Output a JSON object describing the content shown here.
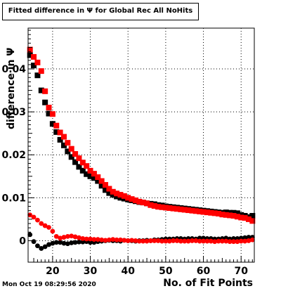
{
  "chart_data": {
    "type": "scatter",
    "title": "Fitted difference in  Ψ  for Global Rec All NoHits",
    "xlabel": "No. of Fit Points",
    "ylabel": "difference in  Ψ",
    "xlim": [
      13.5,
      73.5
    ],
    "ylim": [
      -0.005,
      0.0495
    ],
    "xticks": [
      20,
      30,
      40,
      50,
      60,
      70
    ],
    "yticks": [
      0,
      0.01,
      0.02,
      0.03,
      0.04
    ],
    "ytick_labels": [
      "0",
      "0.01",
      "0.02",
      "0.03",
      "0.04"
    ],
    "grid": true,
    "legend": "none",
    "series": [
      {
        "marker": "square",
        "color": "#000000",
        "x": [
          14,
          15,
          16,
          17,
          18,
          19,
          20,
          21,
          22,
          23,
          24,
          25,
          26,
          27,
          28,
          29,
          30,
          31,
          32,
          33,
          34,
          35,
          36,
          37,
          38,
          39,
          40,
          41,
          42,
          43,
          44,
          45,
          46,
          47,
          48,
          49,
          50,
          51,
          52,
          53,
          54,
          55,
          56,
          57,
          58,
          59,
          60,
          61,
          62,
          63,
          64,
          65,
          66,
          67,
          68,
          69,
          70,
          71,
          72,
          73
        ],
        "y": [
          0.0432,
          0.0408,
          0.0385,
          0.035,
          0.0322,
          0.0296,
          0.0272,
          0.0253,
          0.0235,
          0.0222,
          0.0208,
          0.0195,
          0.0183,
          0.0172,
          0.0163,
          0.0155,
          0.015,
          0.0146,
          0.0139,
          0.0128,
          0.0118,
          0.0111,
          0.0107,
          0.0103,
          0.01,
          0.0098,
          0.0096,
          0.0094,
          0.0092,
          0.009,
          0.0089,
          0.0087,
          0.0086,
          0.0085,
          0.0083,
          0.0082,
          0.008,
          0.0079,
          0.0078,
          0.0077,
          0.0076,
          0.0075,
          0.0074,
          0.0073,
          0.0072,
          0.0071,
          0.007,
          0.0069,
          0.0068,
          0.0067,
          0.0066,
          0.0065,
          0.0066,
          0.0065,
          0.0065,
          0.0064,
          0.006,
          0.0058,
          0.0055,
          0.0058
        ]
      },
      {
        "marker": "square",
        "color": "#ff0000",
        "x": [
          14,
          15,
          16,
          17,
          18,
          19,
          20,
          21,
          22,
          23,
          24,
          25,
          26,
          27,
          28,
          29,
          30,
          31,
          32,
          33,
          34,
          35,
          36,
          37,
          38,
          39,
          40,
          41,
          42,
          43,
          44,
          45,
          46,
          47,
          48,
          49,
          50,
          51,
          52,
          53,
          54,
          55,
          56,
          57,
          58,
          59,
          60,
          61,
          62,
          63,
          64,
          65,
          66,
          67,
          68,
          69,
          70,
          71,
          72,
          73
        ],
        "y": [
          0.0445,
          0.0428,
          0.0415,
          0.0395,
          0.0348,
          0.031,
          0.0295,
          0.0268,
          0.0252,
          0.0242,
          0.0228,
          0.0214,
          0.0202,
          0.0192,
          0.0182,
          0.0174,
          0.0163,
          0.0156,
          0.0148,
          0.0139,
          0.013,
          0.0121,
          0.0114,
          0.011,
          0.0107,
          0.0104,
          0.01,
          0.0097,
          0.0094,
          0.0091,
          0.0089,
          0.0087,
          0.0083,
          0.0081,
          0.0079,
          0.0078,
          0.0077,
          0.0076,
          0.0075,
          0.0074,
          0.0073,
          0.0072,
          0.0071,
          0.007,
          0.0069,
          0.0068,
          0.0067,
          0.0066,
          0.0065,
          0.0064,
          0.0063,
          0.0061,
          0.006,
          0.0059,
          0.0058,
          0.0056,
          0.0054,
          0.0053,
          0.005,
          0.0046
        ]
      },
      {
        "marker": "circle",
        "color": "#000000",
        "x": [
          14,
          15,
          16,
          17,
          18,
          19,
          20,
          21,
          22,
          23,
          24,
          25,
          26,
          27,
          28,
          29,
          30,
          31,
          32,
          33,
          34,
          35,
          36,
          37,
          38,
          39,
          40,
          41,
          42,
          43,
          44,
          45,
          46,
          47,
          48,
          49,
          50,
          51,
          52,
          53,
          54,
          55,
          56,
          57,
          58,
          59,
          60,
          61,
          62,
          63,
          64,
          65,
          66,
          67,
          68,
          69,
          70,
          71,
          72,
          73
        ],
        "y": [
          0.0014,
          -0.0002,
          -0.0012,
          -0.0018,
          -0.0014,
          -0.0009,
          -0.0006,
          -0.0004,
          -0.0004,
          -0.0006,
          -0.0007,
          -0.0005,
          -0.0004,
          -0.0003,
          -0.0003,
          -0.0002,
          -0.0004,
          -0.0004,
          -0.0002,
          -0.0001,
          0.0,
          0.0001,
          0.0,
          0.0,
          -0.0001,
          0.0001,
          0.0,
          0.0,
          -0.0001,
          0.0,
          0.0,
          0.0001,
          0.0,
          0.0002,
          0.0002,
          0.0003,
          0.0004,
          0.0004,
          0.0004,
          0.0005,
          0.0005,
          0.0004,
          0.0005,
          0.0005,
          0.0004,
          0.0006,
          0.0006,
          0.0005,
          0.0005,
          0.0004,
          0.0004,
          0.0005,
          0.0006,
          0.0004,
          0.0005,
          0.0005,
          0.0006,
          0.0007,
          0.0008,
          0.0008
        ]
      },
      {
        "marker": "circle",
        "color": "#ff0000",
        "x": [
          14,
          15,
          16,
          17,
          18,
          19,
          20,
          21,
          22,
          23,
          24,
          25,
          26,
          27,
          28,
          29,
          30,
          31,
          32,
          33,
          34,
          35,
          36,
          37,
          38,
          39,
          40,
          41,
          42,
          43,
          44,
          45,
          46,
          47,
          48,
          49,
          50,
          51,
          52,
          53,
          54,
          55,
          56,
          57,
          58,
          59,
          60,
          61,
          62,
          63,
          64,
          65,
          66,
          67,
          68,
          69,
          70,
          71,
          72,
          73
        ],
        "y": [
          0.006,
          0.0055,
          0.0048,
          0.004,
          0.0035,
          0.0031,
          0.0022,
          0.001,
          0.0006,
          0.0008,
          0.001,
          0.0011,
          0.0009,
          0.0007,
          0.0005,
          0.0004,
          0.0004,
          0.0003,
          0.0003,
          0.0002,
          0.0001,
          0.0002,
          0.0003,
          0.0002,
          0.0002,
          0.0001,
          0.0,
          0.0001,
          0.0,
          -0.0001,
          -0.0001,
          -0.0001,
          0.0,
          0.0,
          0.0,
          -0.0001,
          -0.0001,
          -0.0001,
          0.0,
          0.0,
          -0.0001,
          -0.0001,
          -0.0001,
          0.0,
          0.0,
          -0.0001,
          -0.0001,
          -0.0001,
          -0.0001,
          -0.0002,
          -0.0001,
          -0.0001,
          -0.0001,
          -0.0002,
          -0.0002,
          -0.0002,
          -0.0001,
          -0.0001,
          0.0,
          0.0002
        ]
      }
    ]
  },
  "footer": {
    "timestamp": "Mon Oct 19 08:29:56 2020"
  }
}
